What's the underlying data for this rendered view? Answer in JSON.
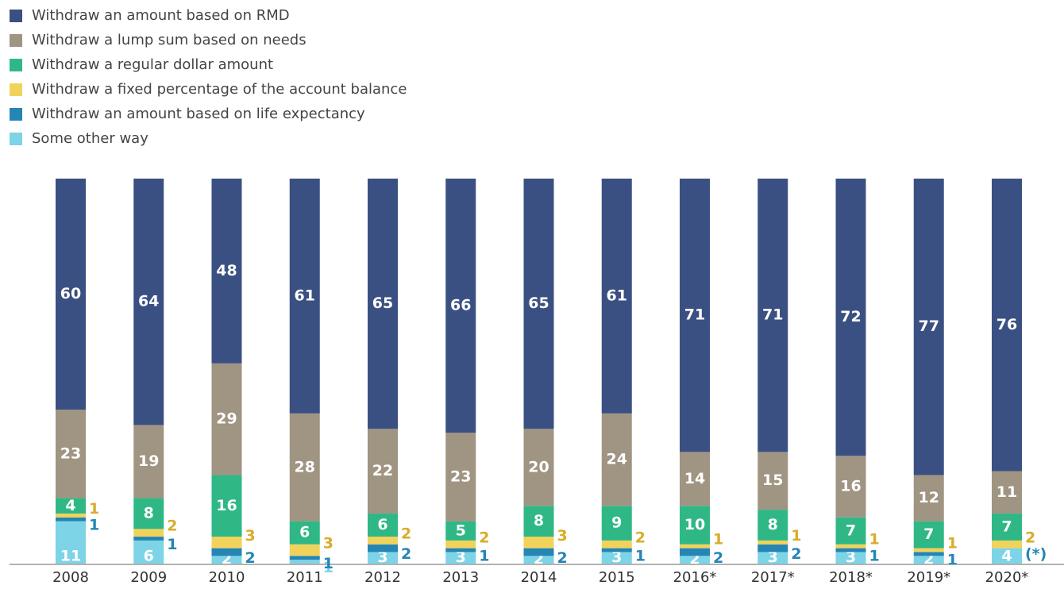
{
  "chart_data": {
    "type": "stacked_bar",
    "categories": [
      "2008",
      "2009",
      "2010",
      "2011",
      "2012",
      "2013",
      "2014",
      "2015",
      "2016*",
      "2017*",
      "2018*",
      "2019*",
      "2020*"
    ],
    "ylim": [
      0,
      100
    ],
    "series": [
      {
        "name": "Withdraw an amount based on RMD",
        "color": "#3b5082",
        "values": [
          60,
          64,
          48,
          61,
          65,
          66,
          65,
          61,
          71,
          71,
          72,
          77,
          76
        ]
      },
      {
        "name": "Withdraw a lump sum based on needs",
        "color": "#a09482",
        "values": [
          23,
          19,
          29,
          28,
          22,
          23,
          20,
          24,
          14,
          15,
          16,
          12,
          11
        ]
      },
      {
        "name": "Withdraw a regular dollar amount",
        "color": "#2fb886",
        "values": [
          4,
          8,
          16,
          6,
          6,
          5,
          8,
          9,
          10,
          8,
          7,
          7,
          7
        ]
      },
      {
        "name": "Withdraw a fixed percentage of the account balance",
        "color": "#f1d35b",
        "values": [
          1,
          2,
          3,
          3,
          2,
          2,
          3,
          2,
          1,
          1,
          1,
          1,
          2
        ]
      },
      {
        "name": "Withdraw an amount based on life expectancy",
        "color": "#2585b5",
        "values": [
          1,
          1,
          2,
          1,
          2,
          1,
          2,
          1,
          2,
          2,
          1,
          1,
          0
        ],
        "value_labels": [
          "1",
          "1",
          "2",
          "1",
          "2",
          "1",
          "2",
          "1",
          "2",
          "2",
          "1",
          "1",
          "(*)"
        ]
      },
      {
        "name": "Some other way",
        "color": "#7dd4e6",
        "values": [
          11,
          6,
          2,
          1,
          3,
          3,
          2,
          3,
          2,
          3,
          3,
          2,
          4
        ]
      }
    ]
  }
}
